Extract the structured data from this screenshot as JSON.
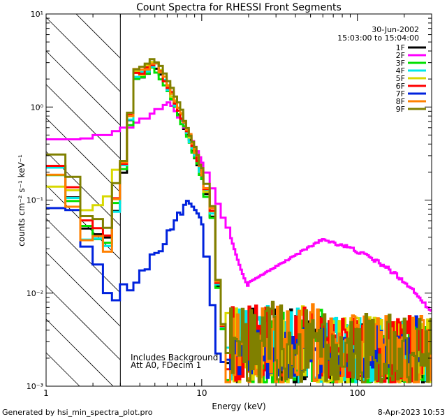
{
  "chart_data": {
    "type": "line",
    "title": "Count Spectra for RHESSI Front Segments",
    "xlabel": "Energy (keV)",
    "ylabel": "counts cm⁻² s⁻¹ keV⁻¹",
    "xscale": "log",
    "yscale": "log",
    "xlim": [
      1,
      300
    ],
    "ylim": [
      0.001,
      10
    ],
    "x_ticks": [
      1,
      10,
      100
    ],
    "x_tick_labels": [
      "1",
      "10",
      "100"
    ],
    "y_ticks": [
      0.001,
      0.01,
      0.1,
      1,
      10
    ],
    "y_tick_labels": [
      "10⁻³",
      "10⁻²",
      "10⁻¹",
      "10⁰",
      "10¹"
    ],
    "date": "30-Jun-2002",
    "time_range": "15:03:00 to 15:04:00",
    "hatched_region_max_energy": 3,
    "annotations": [
      "Includes Background",
      "Att A0, FDecim 1"
    ],
    "footer_left": "Generated by hsi_min_spectra_plot.pro",
    "footer_right": "8-Apr-2023 10:53",
    "series": [
      {
        "name": "1F",
        "color": "#000000",
        "scale": 1.0,
        "low": [
          0.25,
          0.18,
          0.11,
          0.07,
          0.05,
          0.04,
          0.035,
          0.04,
          0.05,
          0.08
        ]
      },
      {
        "name": "2F",
        "color": "#ff00ff",
        "scale": 1.0,
        "low": [
          0.45,
          0.46,
          0.5,
          0.55,
          0.6,
          0.68,
          0.75,
          0.85,
          0.95,
          1.05
        ]
      },
      {
        "name": "3F",
        "color": "#00e000",
        "scale": 0.95,
        "low": [
          0.2,
          0.15,
          0.1,
          0.07,
          0.05,
          0.04,
          0.03,
          0.035,
          0.05,
          0.1
        ]
      },
      {
        "name": "4F",
        "color": "#00e8e8",
        "scale": 1.05,
        "low": [
          0.24,
          0.15,
          0.1,
          0.05,
          0.04,
          0.04,
          0.03,
          0.03,
          0.04,
          0.07
        ]
      },
      {
        "name": "5F",
        "color": "#d8d800",
        "scale": 1.1,
        "low": [
          0.15,
          0.13,
          0.13,
          0.1,
          0.08,
          0.09,
          0.1,
          0.11,
          0.12,
          0.2
        ]
      },
      {
        "name": "6F",
        "color": "#ff0000",
        "scale": 1.1,
        "low": [
          0.25,
          0.2,
          0.13,
          0.08,
          0.06,
          0.05,
          0.05,
          0.045,
          0.06,
          0.1
        ]
      },
      {
        "name": "7F",
        "color": "#0022dd",
        "scale": 1.0,
        "low": [
          0.09,
          0.1,
          0.08,
          0.05,
          0.03,
          0.02,
          0.015,
          0.01,
          0.008,
          0.008
        ]
      },
      {
        "name": "8F",
        "color": "#ff8000",
        "scale": 1.15,
        "low": [
          0.2,
          0.13,
          0.08,
          0.05,
          0.04,
          0.04,
          0.03,
          0.03,
          0.05,
          0.1
        ]
      },
      {
        "name": "9F",
        "color": "#808000",
        "scale": 1.2,
        "low": [
          0.33,
          0.25,
          0.18,
          0.1,
          0.07,
          0.06,
          0.055,
          0.05,
          0.07,
          0.15
        ]
      }
    ]
  }
}
